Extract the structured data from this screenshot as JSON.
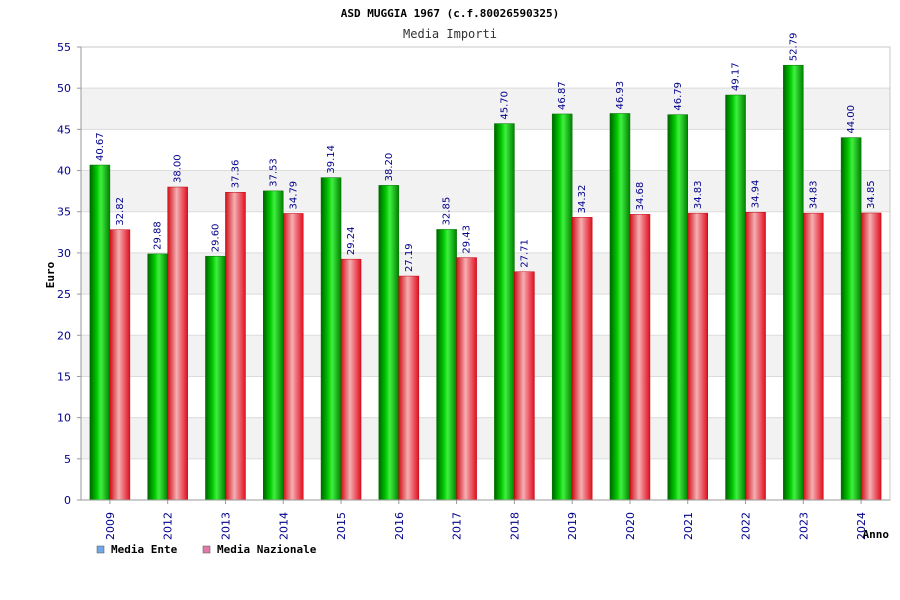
{
  "chart_data": {
    "type": "bar",
    "title": "ASD MUGGIA 1967 (c.f.80026590325)",
    "subtitle": "Media Importi",
    "xlabel": "Anno",
    "ylabel": "Euro",
    "ylim": [
      0,
      55
    ],
    "yticks": [
      0,
      5,
      10,
      15,
      20,
      25,
      30,
      35,
      40,
      45,
      50,
      55
    ],
    "grid": true,
    "legend_position": "bottom-left",
    "categories": [
      "2009",
      "2012",
      "2013",
      "2014",
      "2015",
      "2016",
      "2017",
      "2018",
      "2019",
      "2020",
      "2021",
      "2022",
      "2023",
      "2024"
    ],
    "series": [
      {
        "name": "Media Ente",
        "color": "#00b000",
        "values": [
          40.67,
          29.88,
          29.6,
          37.53,
          39.14,
          38.2,
          32.85,
          45.7,
          46.87,
          46.93,
          46.79,
          49.17,
          52.79,
          44.0
        ],
        "labels": [
          "40.67",
          "29.88",
          "29.60",
          "37.53",
          "39.14",
          "38.20",
          "32.85",
          "45.70",
          "46.87",
          "46.93",
          "46.79",
          "49.17",
          "52.79",
          "44.00"
        ]
      },
      {
        "name": "Media Nazionale",
        "color": "#e8202a",
        "values": [
          32.82,
          38.0,
          37.36,
          34.79,
          29.24,
          27.19,
          29.43,
          27.71,
          34.32,
          34.68,
          34.83,
          34.94,
          34.83,
          34.85
        ],
        "labels": [
          "32.82",
          "38.00",
          "37.36",
          "34.79",
          "29.24",
          "27.19",
          "29.43",
          "27.71",
          "34.32",
          "34.68",
          "34.83",
          "34.94",
          "34.83",
          "34.85"
        ]
      }
    ],
    "legend": [
      {
        "label": "Media Ente",
        "color": "#6ea8e8"
      },
      {
        "label": "Media Nazionale",
        "color": "#e07aa8"
      }
    ]
  }
}
